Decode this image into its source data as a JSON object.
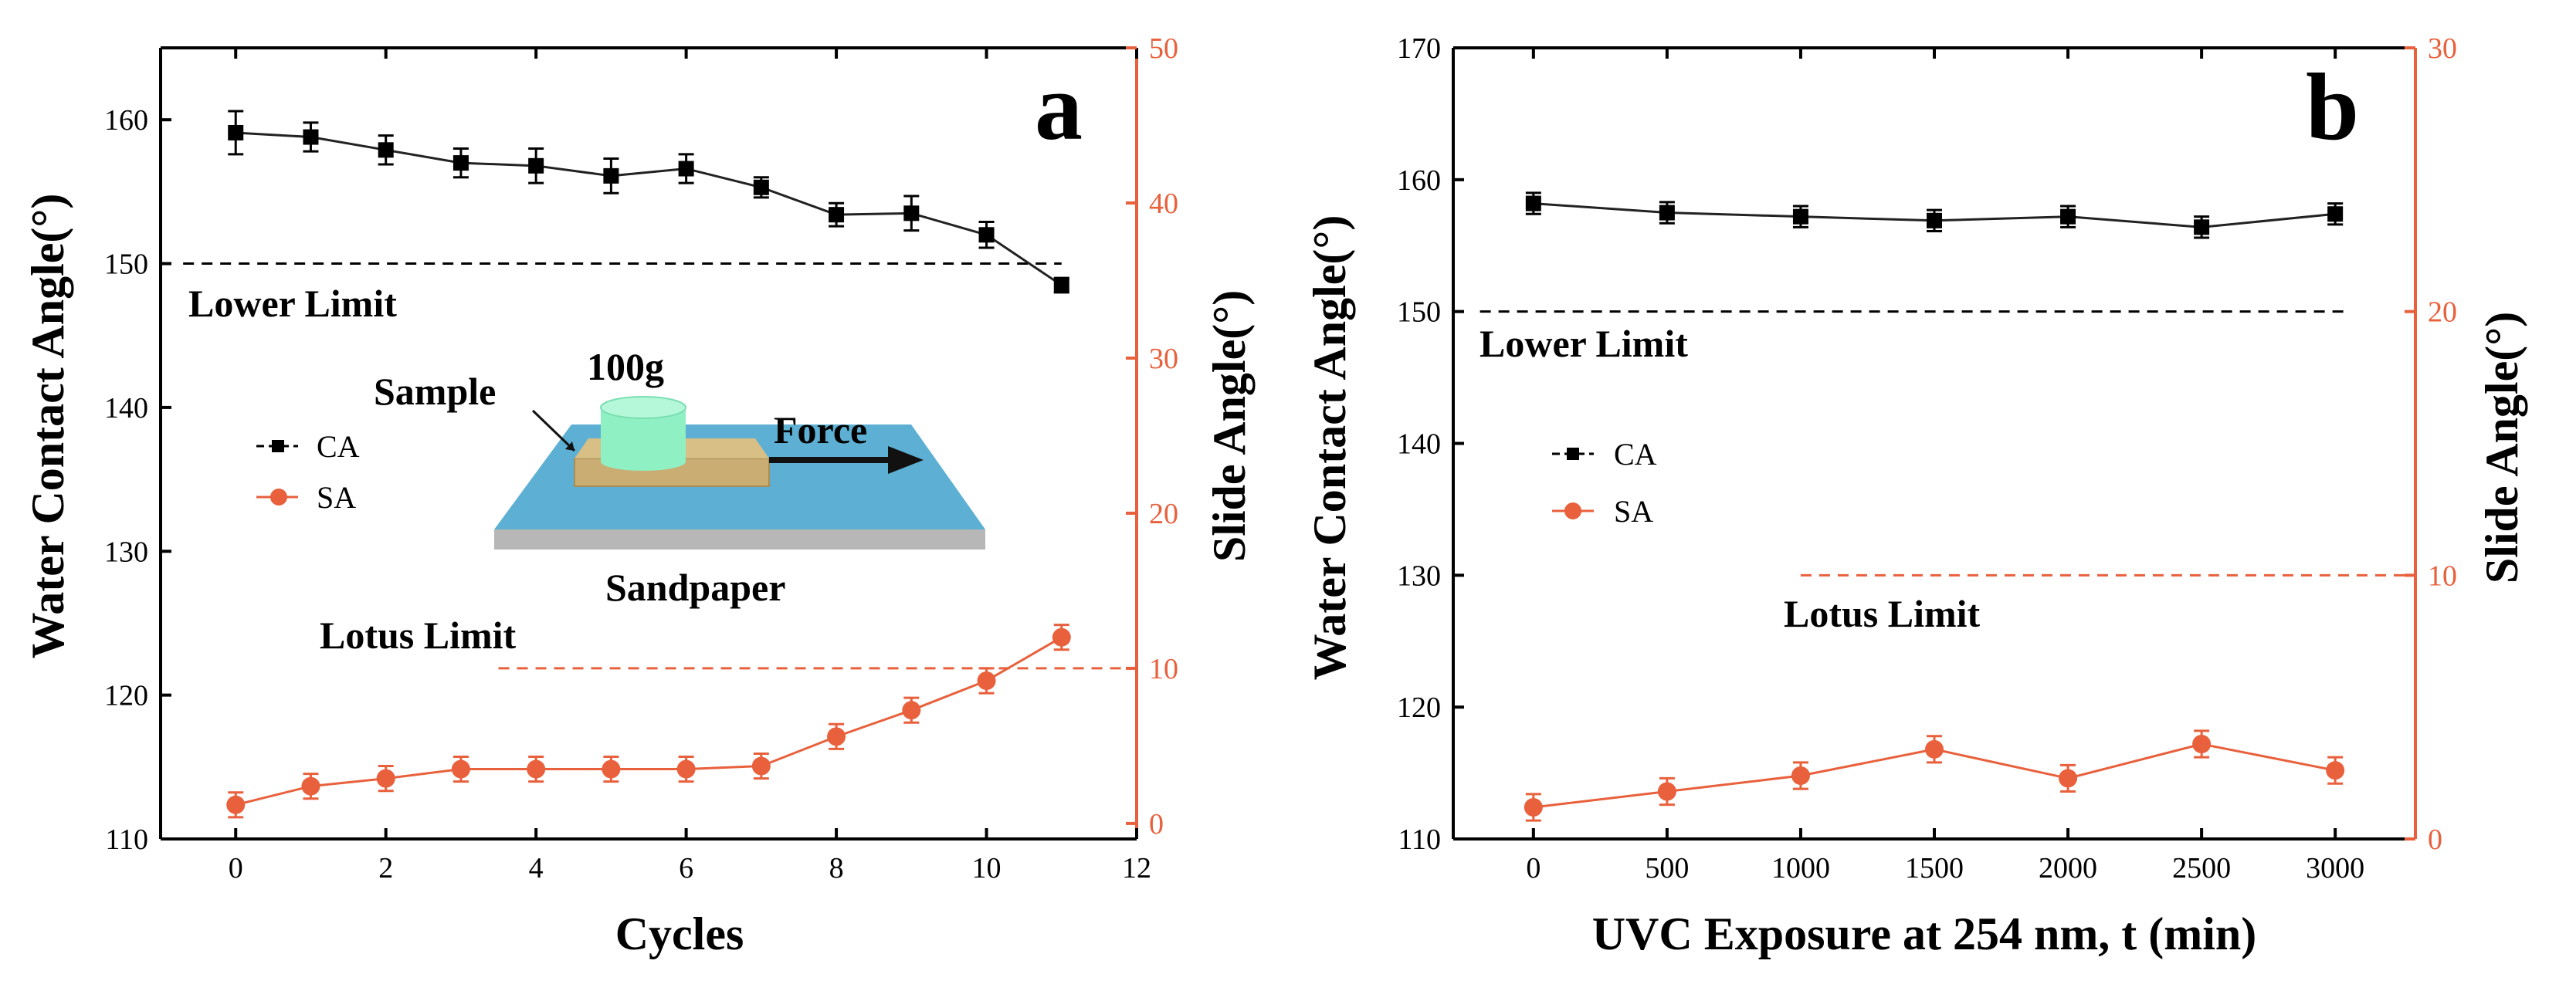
{
  "colors": {
    "ca": "#000000",
    "sa": "#e8603c",
    "inset_paper_top": "#5db0d3",
    "inset_paper_side": "#b7b7b7",
    "inset_sample": "#c9ad72",
    "inset_weight": "#8ff0c4"
  },
  "chart_data": [
    {
      "type": "line",
      "panel_label": "a",
      "xlabel": "Cycles",
      "ylabel_left": "Water Contact Angle(°)",
      "ylabel_right": "Slide Angle(°)",
      "xlim": [
        -1,
        12
      ],
      "ylim_left": [
        110,
        165
      ],
      "ylim_right": [
        -1,
        50
      ],
      "xticks": [
        0,
        2,
        4,
        6,
        8,
        10,
        12
      ],
      "yticks_left": [
        110,
        120,
        130,
        140,
        150,
        160
      ],
      "yticks_right": [
        0,
        10,
        20,
        30,
        40,
        50
      ],
      "legend": [
        "CA",
        "SA"
      ],
      "series": [
        {
          "name": "CA",
          "axis": "left",
          "x": [
            0,
            1,
            2,
            3,
            4,
            5,
            6,
            7,
            8,
            9,
            10,
            11
          ],
          "values": [
            159.1,
            158.8,
            157.9,
            157.0,
            156.8,
            156.1,
            156.6,
            155.3,
            153.4,
            153.5,
            152.0,
            148.5
          ],
          "errors": [
            1.5,
            1.0,
            1.0,
            1.0,
            1.2,
            1.2,
            1.0,
            0.7,
            0.8,
            1.2,
            0.9,
            0.5
          ]
        },
        {
          "name": "SA",
          "axis": "right",
          "x": [
            0,
            1,
            2,
            3,
            4,
            5,
            6,
            7,
            8,
            9,
            10,
            11
          ],
          "values": [
            1.2,
            2.4,
            2.9,
            3.5,
            3.5,
            3.5,
            3.5,
            3.7,
            5.6,
            7.3,
            9.2,
            12.0
          ],
          "errors": [
            0.8,
            0.8,
            0.8,
            0.8,
            0.8,
            0.8,
            0.8,
            0.8,
            0.8,
            0.8,
            0.8,
            0.8
          ]
        }
      ],
      "reference_lines": [
        {
          "label": "Lower Limit",
          "axis": "left",
          "value": 150,
          "x_range": [
            -0.7,
            11.0
          ]
        },
        {
          "label": "Lotus Limit",
          "axis": "right",
          "value": 10,
          "x_range": [
            3.5,
            12
          ]
        }
      ],
      "inset": {
        "weight_label": "100g",
        "sample_label": "Sample",
        "force_label": "Force",
        "surface_label": "Sandpaper"
      }
    },
    {
      "type": "line",
      "panel_label": "b",
      "xlabel": "UVC Exposure at 254 nm, t (min)",
      "ylabel_left": "Water Contact Angle(°)",
      "ylabel_right": "Slide Angle(°)",
      "xlim": [
        -300,
        3300
      ],
      "ylim_left": [
        110,
        170
      ],
      "ylim_right": [
        0,
        30
      ],
      "xticks": [
        0,
        500,
        1000,
        1500,
        2000,
        2500,
        3000
      ],
      "yticks_left": [
        110,
        120,
        130,
        140,
        150,
        160,
        170
      ],
      "yticks_right": [
        0,
        10,
        20,
        30
      ],
      "legend": [
        "CA",
        "SA"
      ],
      "series": [
        {
          "name": "CA",
          "axis": "left",
          "x": [
            0,
            500,
            1000,
            1500,
            2000,
            2500,
            3000
          ],
          "values": [
            158.2,
            157.5,
            157.2,
            156.9,
            157.2,
            156.4,
            157.4
          ],
          "errors": [
            0.8,
            0.8,
            0.8,
            0.8,
            0.8,
            0.8,
            0.8
          ]
        },
        {
          "name": "SA",
          "axis": "right",
          "x": [
            0,
            500,
            1000,
            1500,
            2000,
            2500,
            3000
          ],
          "values": [
            1.2,
            1.8,
            2.4,
            3.4,
            2.3,
            3.6,
            2.6
          ],
          "errors": [
            0.5,
            0.5,
            0.5,
            0.5,
            0.5,
            0.5,
            0.5
          ]
        }
      ],
      "reference_lines": [
        {
          "label": "Lower Limit",
          "axis": "left",
          "value": 150,
          "x_range": [
            -200,
            3050
          ]
        },
        {
          "label": "Lotus Limit",
          "axis": "right",
          "value": 10,
          "x_range": [
            1000,
            3300
          ]
        }
      ]
    }
  ]
}
